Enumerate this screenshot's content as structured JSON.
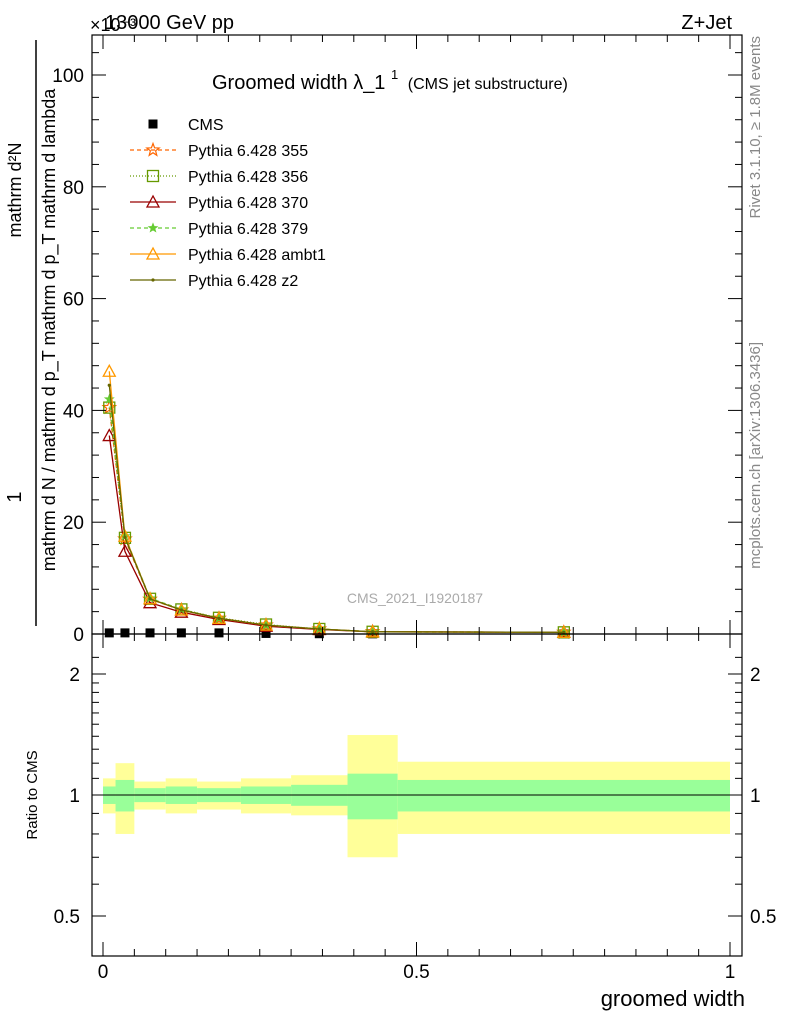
{
  "header": {
    "left": "13000 GeV pp",
    "right": "Z+Jet",
    "exponent_label": "×10⁻³"
  },
  "side_labels": {
    "rivet": "Rivet 3.1.10, ≥ 1.8M events",
    "mcplots": "mcplots.cern.ch [arXiv:1306.3436]"
  },
  "watermark": "CMS_2021_I1920187",
  "colors": {
    "band_inner": "#99ff99",
    "band_outer": "#ffff99",
    "cms": "#000000",
    "p355": "#ff6600",
    "p356": "#669900",
    "p370": "#990000",
    "p379": "#66cc33",
    "ambt1": "#ff9900",
    "z2": "#666600"
  },
  "chart_data": [
    {
      "type": "line",
      "panel": "main",
      "title": "Groomed width",
      "title_symbol": "λ_1",
      "title_superscript": "1",
      "subtitle": "(CMS jet substructure)",
      "ylabel_numerator": "1",
      "ylabel_denominator": "mathrm d N / mathrm d p_T mathrm d p_T mathrm d lambda",
      "ylabel_top": "mathrm d²N",
      "xlim": [
        0,
        1
      ],
      "ylim": [
        0,
        107
      ],
      "yticks": [
        "0",
        "20",
        "40",
        "60",
        "80",
        "100"
      ],
      "grid": false,
      "legend_position": "top-left",
      "bin_edges": [
        0,
        0.02,
        0.05,
        0.1,
        0.15,
        0.22,
        0.3,
        0.39,
        0.47,
        1.0
      ],
      "x": [
        0.01,
        0.035,
        0.075,
        0.125,
        0.185,
        0.26,
        0.345,
        0.43,
        0.735
      ],
      "series": [
        {
          "name": "CMS",
          "marker": "square",
          "values": [
            0.2,
            0.2,
            0.2,
            0.2,
            0.2,
            0.1,
            0.05,
            0.03,
            0.02
          ]
        },
        {
          "name": "Pythia 6.428 355",
          "marker": "star",
          "dash": "4,3",
          "values": [
            40.5,
            17.0,
            6.2,
            4.3,
            2.8,
            1.6,
            0.9,
            0.4,
            0.3
          ]
        },
        {
          "name": "Pythia 6.428 356",
          "marker": "open-square",
          "dash": "1,2",
          "values": [
            40.5,
            17.2,
            6.3,
            4.4,
            2.9,
            1.7,
            0.9,
            0.4,
            0.3
          ]
        },
        {
          "name": "Pythia 6.428 370",
          "marker": "open-triangle",
          "dash": "",
          "values": [
            35.5,
            14.8,
            5.6,
            3.9,
            2.6,
            1.4,
            0.8,
            0.4,
            0.3
          ]
        },
        {
          "name": "Pythia 6.428 379",
          "marker": "small-star",
          "dash": "4,3",
          "values": [
            42.0,
            17.5,
            6.4,
            4.4,
            2.8,
            1.6,
            0.9,
            0.4,
            0.3
          ]
        },
        {
          "name": "Pythia 6.428 ambt1",
          "marker": "open-triangle",
          "dash": "",
          "values": [
            47.0,
            17.5,
            6.3,
            4.3,
            2.8,
            1.6,
            0.9,
            0.4,
            0.3
          ]
        },
        {
          "name": "Pythia 6.428 z2",
          "marker": "dot",
          "dash": "",
          "values": [
            44.5,
            17.3,
            6.3,
            4.3,
            2.8,
            1.6,
            0.9,
            0.4,
            0.3
          ]
        }
      ]
    },
    {
      "type": "area",
      "panel": "ratio",
      "ylabel": "Ratio to CMS",
      "xlabel": "groomed width",
      "xlim": [
        0,
        1
      ],
      "ylim": [
        0.4,
        2.4
      ],
      "yticks": [
        "0.5",
        "1",
        "2"
      ],
      "xticks": [
        "0",
        "0.5",
        "1"
      ],
      "log_y": true,
      "bin_edges": [
        0,
        0.02,
        0.05,
        0.1,
        0.15,
        0.22,
        0.3,
        0.39,
        0.47,
        1.0
      ],
      "inner_lo": [
        0.95,
        0.91,
        0.96,
        0.95,
        0.96,
        0.95,
        0.94,
        0.87,
        0.91
      ],
      "inner_hi": [
        1.05,
        1.09,
        1.04,
        1.05,
        1.04,
        1.05,
        1.06,
        1.13,
        1.09
      ],
      "outer_lo": [
        0.9,
        0.8,
        0.92,
        0.9,
        0.92,
        0.9,
        0.89,
        0.7,
        0.8
      ],
      "outer_hi": [
        1.1,
        1.2,
        1.08,
        1.1,
        1.08,
        1.1,
        1.12,
        1.41,
        1.21
      ]
    }
  ]
}
